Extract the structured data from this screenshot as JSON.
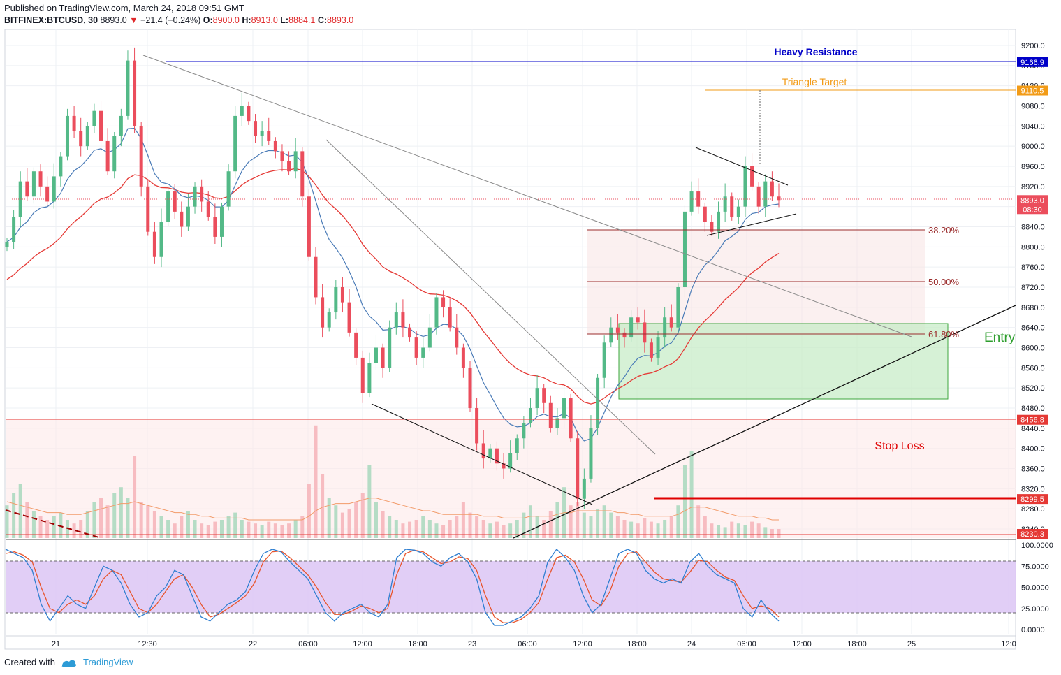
{
  "header": {
    "published": "Published on TradingView.com, March 24, 2018 09:51 GMT",
    "symbol": "BITFINEX:BTCUSD, 30",
    "last": "8893.0",
    "change": "−21.4 (−0.24%)",
    "ohlc": [
      {
        "k": "O:",
        "v": "8900.0"
      },
      {
        "k": "H:",
        "v": "8913.0"
      },
      {
        "k": "L:",
        "v": "8884.1"
      },
      {
        "k": "C:",
        "v": "8893.0"
      }
    ]
  },
  "footer": {
    "created_with": "Created with",
    "brand": "TradingView"
  },
  "colors": {
    "up": "#53b987",
    "down": "#eb4d5c",
    "ema_fast": "#4a7bb7",
    "ema_slow": "#e53935",
    "resistance": "#0000c8",
    "target": "#f29b17",
    "fib": "#9b2d2d",
    "stop": "#e53935",
    "entry": "#2e9e2e",
    "stoch_k": "#2f7fd1",
    "stoch_d": "#e8552d"
  },
  "chart_data": [
    {
      "type": "candlestick",
      "title": "",
      "x_ticks": [
        "21",
        "12:30",
        "22",
        "06:00",
        "12:00",
        "18:00",
        "23",
        "06:00",
        "12:00",
        "18:00",
        "24",
        "06:00",
        "12:00",
        "18:00",
        "25",
        "12:0"
      ],
      "y_ticks": [
        "9200.0",
        "9160.0",
        "9120.0",
        "9080.0",
        "9040.0",
        "9000.0",
        "8960.0",
        "8920.0",
        "8880.0",
        "8840.0",
        "8800.0",
        "8760.0",
        "8720.0",
        "8680.0",
        "8640.0",
        "8600.0",
        "8560.0",
        "8520.0",
        "8480.0",
        "8440.0",
        "8400.0",
        "8360.0",
        "8320.0",
        "8280.0",
        "8240.0"
      ],
      "ylim": [
        8228,
        9223
      ],
      "price_tags": [
        {
          "label": "9166.9",
          "value": 9166.9,
          "color": "#0000c8"
        },
        {
          "label": "9110.5",
          "value": 9110.5,
          "color": "#f29b17"
        },
        {
          "label": "8893.0",
          "value": 8893.0,
          "color": "#eb4d5c"
        },
        {
          "label": "08:30",
          "value": 8875.0,
          "color": "#eb4d5c"
        },
        {
          "label": "8456.8",
          "value": 8456.8,
          "color": "#e53935"
        },
        {
          "label": "8299.5",
          "value": 8299.5,
          "color": "#e53935"
        },
        {
          "label": "8230.3",
          "value": 8230.3,
          "color": "#e53935"
        }
      ],
      "annotations": {
        "heavy_resistance": "Heavy Resistance",
        "triangle_target": "Triangle Target",
        "fib_38": "38.20%",
        "fib_50": "50.00%",
        "fib_618": "61.80%",
        "entry": "Entry",
        "stop_loss": "Stop Loss"
      },
      "levels": {
        "heavy_resistance": 9166.9,
        "triangle_target": 9110.5,
        "fib_38": 8833,
        "fib_50": 8730,
        "fib_618": 8627,
        "stop_loss": 8456.8,
        "stop_line": 8299.5,
        "entry_zone": [
          8497,
          8650
        ],
        "stop_zone": [
          8228,
          8456.8
        ]
      },
      "candles_close_path": [
        8810,
        8860,
        8930,
        8900,
        8950,
        8920,
        8890,
        8940,
        8980,
        9060,
        9030,
        9000,
        9040,
        9070,
        9010,
        8950,
        9020,
        9060,
        9170,
        9040,
        8920,
        8830,
        8780,
        8850,
        8910,
        8870,
        8840,
        8880,
        8920,
        8890,
        8860,
        8820,
        8880,
        8950,
        9060,
        9080,
        9050,
        9020,
        9030,
        9010,
        8990,
        8970,
        8950,
        8990,
        8900,
        8780,
        8700,
        8640,
        8670,
        8720,
        8690,
        8630,
        8580,
        8510,
        8570,
        8600,
        8560,
        8640,
        8670,
        8640,
        8620,
        8580,
        8600,
        8640,
        8700,
        8680,
        8640,
        8600,
        8560,
        8480,
        8410,
        8380,
        8400,
        8370,
        8360,
        8390,
        8420,
        8450,
        8480,
        8520,
        8490,
        8440,
        8460,
        8500,
        8420,
        8300,
        8340,
        8440,
        8540,
        8610,
        8640,
        8630,
        8620,
        8660,
        8650,
        8610,
        8580,
        8620,
        8660,
        8640,
        8720,
        8870,
        8910,
        8880,
        8850,
        8830,
        8870,
        8900,
        8860,
        8880,
        8960,
        8920,
        8880,
        8930,
        8900,
        8893
      ],
      "volume_ylim": [
        0,
        100
      ],
      "volume": [
        18,
        25,
        30,
        20,
        15,
        12,
        10,
        12,
        14,
        10,
        8,
        10,
        15,
        20,
        22,
        18,
        25,
        28,
        22,
        45,
        20,
        18,
        15,
        12,
        10,
        8,
        12,
        15,
        10,
        8,
        7,
        9,
        10,
        12,
        14,
        10,
        9,
        8,
        7,
        9,
        8,
        7,
        8,
        10,
        12,
        30,
        62,
        35,
        22,
        18,
        14,
        16,
        20,
        25,
        40,
        20,
        15,
        12,
        10,
        8,
        9,
        10,
        12,
        10,
        8,
        7,
        10,
        12,
        20,
        14,
        12,
        10,
        8,
        9,
        7,
        8,
        10,
        14,
        18,
        12,
        10,
        15,
        20,
        28,
        18,
        20,
        14,
        12,
        16,
        18,
        14,
        12,
        10,
        9,
        8,
        11,
        9,
        8,
        10,
        12,
        18,
        40,
        48,
        18,
        12,
        8,
        7,
        6,
        9,
        8,
        7,
        9,
        8,
        6,
        5,
        5
      ],
      "volume_ma": [
        20,
        19,
        18,
        17,
        16,
        15,
        14,
        14,
        14,
        13,
        13,
        13,
        14,
        15,
        16,
        17,
        18,
        19,
        19,
        20,
        19,
        18,
        17,
        16,
        15,
        14,
        14,
        13,
        13,
        12,
        12,
        11,
        11,
        11,
        11,
        11,
        10,
        10,
        10,
        10,
        10,
        10,
        10,
        10,
        10,
        12,
        15,
        17,
        18,
        19,
        19,
        19,
        20,
        21,
        22,
        22,
        21,
        20,
        19,
        18,
        17,
        16,
        15,
        15,
        14,
        13,
        13,
        13,
        13,
        13,
        13,
        12,
        12,
        12,
        11,
        11,
        11,
        11,
        12,
        12,
        12,
        12,
        13,
        14,
        14,
        15,
        15,
        15,
        15,
        15,
        15,
        14,
        14,
        13,
        13,
        12,
        12,
        12,
        12,
        12,
        13,
        15,
        17,
        17,
        17,
        16,
        15,
        14,
        13,
        12,
        12,
        12,
        11,
        11,
        10,
        10
      ]
    },
    {
      "type": "line",
      "title": "",
      "y_ticks": [
        "100.0000",
        "75.0000",
        "50.0000",
        "25.0000",
        "0.0000"
      ],
      "ylim": [
        -5,
        105
      ],
      "band": [
        20,
        80
      ],
      "series": [
        {
          "values": [
            95,
            90,
            85,
            70,
            30,
            10,
            25,
            40,
            30,
            25,
            50,
            75,
            70,
            55,
            30,
            15,
            20,
            40,
            50,
            70,
            65,
            40,
            15,
            10,
            20,
            30,
            35,
            45,
            70,
            90,
            95,
            92,
            80,
            70,
            60,
            40,
            20,
            10,
            20,
            25,
            30,
            20,
            15,
            30,
            85,
            95,
            94,
            90,
            80,
            75,
            85,
            90,
            80,
            60,
            20,
            5,
            5,
            10,
            15,
            25,
            40,
            80,
            95,
            85,
            70,
            40,
            20,
            30,
            60,
            90,
            95,
            90,
            70,
            60,
            55,
            60,
            55,
            80,
            90,
            75,
            65,
            60,
            55,
            25,
            15,
            35,
            20,
            10
          ]
        },
        {
          "values": [
            90,
            92,
            88,
            80,
            50,
            25,
            20,
            30,
            35,
            30,
            40,
            60,
            70,
            65,
            45,
            25,
            20,
            30,
            45,
            60,
            65,
            50,
            30,
            15,
            18,
            25,
            32,
            40,
            55,
            80,
            92,
            93,
            85,
            75,
            65,
            50,
            32,
            18,
            18,
            22,
            28,
            25,
            20,
            25,
            65,
            90,
            94,
            92,
            85,
            78,
            80,
            86,
            84,
            70,
            40,
            15,
            8,
            8,
            12,
            20,
            32,
            60,
            85,
            88,
            80,
            60,
            35,
            28,
            45,
            75,
            90,
            92,
            80,
            68,
            60,
            58,
            56,
            68,
            82,
            80,
            70,
            62,
            58,
            40,
            25,
            28,
            25,
            15
          ]
        }
      ]
    }
  ]
}
